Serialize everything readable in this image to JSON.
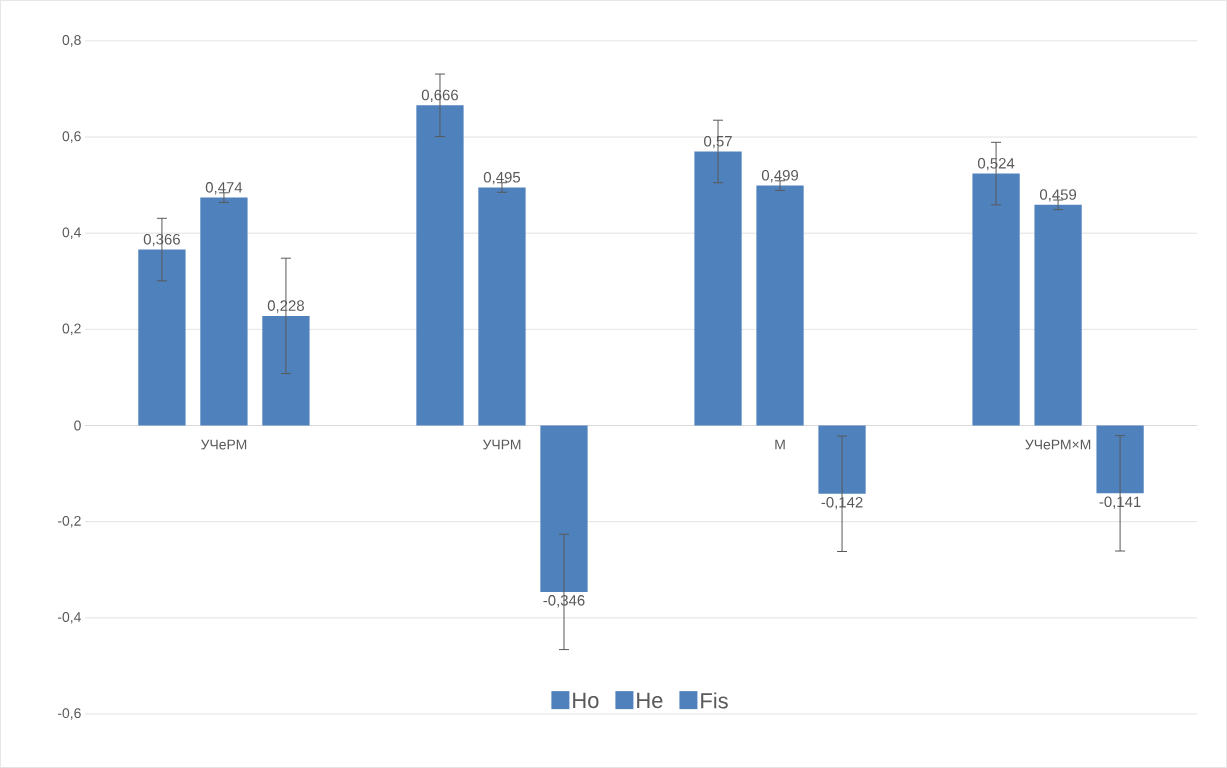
{
  "chart_data": {
    "type": "bar",
    "categories": [
      "УЧеРМ",
      "УЧРМ",
      "М",
      "УЧеРМ×М"
    ],
    "series": [
      {
        "name": "Ho",
        "color": "#4f81bd",
        "values": [
          0.366,
          0.666,
          0.57,
          0.524
        ],
        "errors": [
          0.065,
          0.065,
          0.065,
          0.065
        ],
        "value_labels": [
          "0,366",
          "0,666",
          "0,57",
          "0,524"
        ]
      },
      {
        "name": "He",
        "color": "#4f81bd",
        "values": [
          0.474,
          0.495,
          0.499,
          0.459
        ],
        "errors": [
          0.01,
          0.01,
          0.01,
          0.01
        ],
        "value_labels": [
          "0,474",
          "0,495",
          "0,499",
          "0,459"
        ]
      },
      {
        "name": "Fis",
        "color": "#4f81bd",
        "values": [
          0.228,
          -0.346,
          -0.142,
          -0.141
        ],
        "errors": [
          0.12,
          0.12,
          0.12,
          0.12
        ],
        "value_labels": [
          "0,228",
          "-0,346",
          "-0,142",
          "-0,141"
        ]
      }
    ],
    "ylim": [
      -0.6,
      0.8
    ],
    "yticks": [
      {
        "value": -0.6,
        "label": "-0,6"
      },
      {
        "value": -0.4,
        "label": "-0,4"
      },
      {
        "value": -0.2,
        "label": "-0,2"
      },
      0,
      {
        "value": 0.2,
        "label": "0,2"
      },
      {
        "value": 0.4,
        "label": "0,4"
      },
      {
        "value": 0.6,
        "label": "0,6"
      },
      {
        "value": 0.8,
        "label": "0,8"
      }
    ],
    "grid": "y",
    "legend": "bottom"
  }
}
